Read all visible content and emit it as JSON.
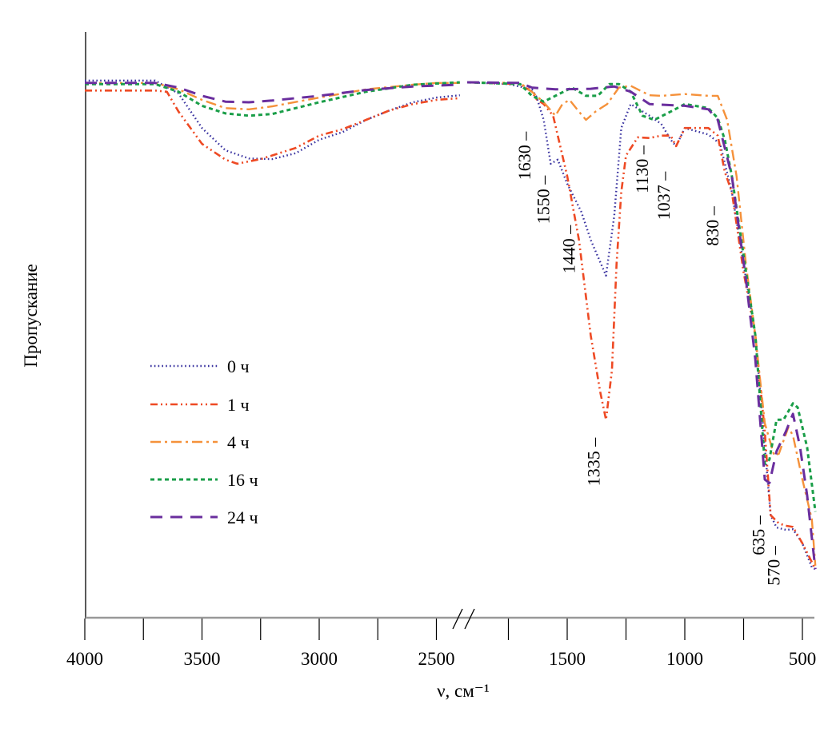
{
  "chart_data": {
    "type": "line",
    "title": "",
    "xlabel": "ν, см⁻¹",
    "ylabel": "Пропускание",
    "x_axis": {
      "reversed": true,
      "broken": true,
      "segments": [
        [
          4000,
          2390
        ],
        [
          1925,
          445
        ]
      ],
      "ticks": [
        {
          "value": 4000,
          "label": "4000",
          "segment": 0
        },
        {
          "value": 3750,
          "label": "",
          "segment": 0
        },
        {
          "value": 3500,
          "label": "3500",
          "segment": 0
        },
        {
          "value": 3250,
          "label": "",
          "segment": 0
        },
        {
          "value": 3000,
          "label": "3000",
          "segment": 0
        },
        {
          "value": 2750,
          "label": "",
          "segment": 0
        },
        {
          "value": 2500,
          "label": "2500",
          "segment": 0
        },
        {
          "value": 1750,
          "label": "",
          "segment": 1
        },
        {
          "value": 1500,
          "label": "1500",
          "segment": 1
        },
        {
          "value": 1250,
          "label": "",
          "segment": 1
        },
        {
          "value": 1000,
          "label": "1000",
          "segment": 1
        },
        {
          "value": 750,
          "label": "",
          "segment": 1
        },
        {
          "value": 500,
          "label": "500",
          "segment": 1
        }
      ]
    },
    "y_axis": {
      "units": "arbitrary transmittance",
      "ylim": [
        0,
        100
      ],
      "ticks_shown": false
    },
    "grid": false,
    "legend_position": "center-left",
    "series": [
      {
        "name": "0 ч",
        "color": "#3a33a0",
        "points": [
          [
            4000,
            91.7
          ],
          [
            3700,
            91.7
          ],
          [
            3600,
            89.5
          ],
          [
            3500,
            83.6
          ],
          [
            3400,
            79.8
          ],
          [
            3300,
            78.4
          ],
          [
            3200,
            78.3
          ],
          [
            3100,
            79.3
          ],
          [
            3000,
            81.6
          ],
          [
            2900,
            82.9
          ],
          [
            2800,
            85.0
          ],
          [
            2700,
            86.6
          ],
          [
            2600,
            88.0
          ],
          [
            2500,
            88.8
          ],
          [
            2400,
            89.2
          ],
          [
            1925,
            91.4
          ],
          [
            1750,
            91.1
          ],
          [
            1650,
            90.2
          ],
          [
            1630,
            88.9
          ],
          [
            1600,
            85.0
          ],
          [
            1570,
            77.5
          ],
          [
            1540,
            78.2
          ],
          [
            1500,
            74.1
          ],
          [
            1440,
            69.3
          ],
          [
            1400,
            64.5
          ],
          [
            1335,
            58.4
          ],
          [
            1300,
            68.6
          ],
          [
            1270,
            83.6
          ],
          [
            1230,
            87.7
          ],
          [
            1150,
            85.7
          ],
          [
            1100,
            84.3
          ],
          [
            1060,
            81.6
          ],
          [
            1037,
            80.5
          ],
          [
            1000,
            83.6
          ],
          [
            900,
            82.5
          ],
          [
            850,
            80.9
          ],
          [
            800,
            72.7
          ],
          [
            750,
            60.4
          ],
          [
            700,
            48.2
          ],
          [
            660,
            29.1
          ],
          [
            635,
            17.5
          ],
          [
            610,
            15.4
          ],
          [
            570,
            15.0
          ],
          [
            540,
            15.1
          ],
          [
            500,
            12.7
          ],
          [
            460,
            8.6
          ],
          [
            445,
            8.3
          ]
        ]
      },
      {
        "name": "1 ч",
        "color": "#ee4a24",
        "points": [
          [
            4000,
            90.0
          ],
          [
            3700,
            90.0
          ],
          [
            3650,
            89.8
          ],
          [
            3600,
            86.4
          ],
          [
            3500,
            80.9
          ],
          [
            3400,
            78.2
          ],
          [
            3350,
            77.5
          ],
          [
            3250,
            78.3
          ],
          [
            3100,
            80.2
          ],
          [
            3000,
            82.3
          ],
          [
            2900,
            83.4
          ],
          [
            2800,
            85.0
          ],
          [
            2700,
            86.6
          ],
          [
            2600,
            87.7
          ],
          [
            2500,
            88.4
          ],
          [
            2400,
            88.7
          ],
          [
            1925,
            91.4
          ],
          [
            1700,
            91.1
          ],
          [
            1650,
            89.8
          ],
          [
            1630,
            88.5
          ],
          [
            1600,
            87.7
          ],
          [
            1560,
            85.7
          ],
          [
            1500,
            75.4
          ],
          [
            1450,
            64.5
          ],
          [
            1400,
            48.2
          ],
          [
            1360,
            38.6
          ],
          [
            1335,
            33.8
          ],
          [
            1310,
            42.2
          ],
          [
            1290,
            60.4
          ],
          [
            1270,
            72.7
          ],
          [
            1250,
            78.9
          ],
          [
            1200,
            82.0
          ],
          [
            1150,
            81.9
          ],
          [
            1100,
            82.3
          ],
          [
            1060,
            82.3
          ],
          [
            1037,
            80.5
          ],
          [
            1000,
            83.6
          ],
          [
            900,
            83.6
          ],
          [
            860,
            82.3
          ],
          [
            840,
            78.2
          ],
          [
            830,
            76.1
          ],
          [
            800,
            72.7
          ],
          [
            750,
            59.0
          ],
          [
            700,
            48.2
          ],
          [
            660,
            31.8
          ],
          [
            635,
            17.5
          ],
          [
            600,
            16.1
          ],
          [
            570,
            15.7
          ],
          [
            540,
            15.5
          ],
          [
            500,
            12.7
          ],
          [
            445,
            8.3
          ]
        ]
      },
      {
        "name": "4 ч",
        "color": "#f5913a",
        "points": [
          [
            4000,
            91.3
          ],
          [
            3700,
            91.3
          ],
          [
            3600,
            90.2
          ],
          [
            3500,
            88.4
          ],
          [
            3400,
            87.0
          ],
          [
            3300,
            86.8
          ],
          [
            3200,
            87.3
          ],
          [
            3000,
            88.8
          ],
          [
            2800,
            90.2
          ],
          [
            2600,
            91.0
          ],
          [
            2500,
            91.3
          ],
          [
            2400,
            91.3
          ],
          [
            1925,
            91.4
          ],
          [
            1700,
            91.3
          ],
          [
            1650,
            89.8
          ],
          [
            1600,
            88.0
          ],
          [
            1550,
            85.7
          ],
          [
            1520,
            87.7
          ],
          [
            1490,
            88.4
          ],
          [
            1450,
            86.4
          ],
          [
            1420,
            85.0
          ],
          [
            1380,
            86.4
          ],
          [
            1330,
            87.7
          ],
          [
            1280,
            90.5
          ],
          [
            1230,
            90.8
          ],
          [
            1150,
            89.2
          ],
          [
            1100,
            89.1
          ],
          [
            1000,
            89.4
          ],
          [
            900,
            89.1
          ],
          [
            860,
            89.1
          ],
          [
            820,
            85.0
          ],
          [
            780,
            75.4
          ],
          [
            740,
            60.4
          ],
          [
            700,
            48.2
          ],
          [
            660,
            33.2
          ],
          [
            620,
            27.7
          ],
          [
            600,
            28.0
          ],
          [
            560,
            32.5
          ],
          [
            540,
            31.1
          ],
          [
            500,
            23.6
          ],
          [
            460,
            16.8
          ],
          [
            445,
            8.9
          ]
        ]
      },
      {
        "name": "16 ч",
        "color": "#1a9e48",
        "points": [
          [
            4000,
            91.1
          ],
          [
            3700,
            91.1
          ],
          [
            3600,
            89.8
          ],
          [
            3500,
            87.4
          ],
          [
            3400,
            86.1
          ],
          [
            3300,
            85.7
          ],
          [
            3200,
            86.0
          ],
          [
            3000,
            88.0
          ],
          [
            2800,
            89.8
          ],
          [
            2600,
            91.0
          ],
          [
            2400,
            91.4
          ],
          [
            1925,
            91.4
          ],
          [
            1700,
            91.1
          ],
          [
            1650,
            89.1
          ],
          [
            1600,
            88.1
          ],
          [
            1550,
            89.1
          ],
          [
            1480,
            90.5
          ],
          [
            1420,
            89.1
          ],
          [
            1370,
            89.1
          ],
          [
            1320,
            91.1
          ],
          [
            1280,
            91.1
          ],
          [
            1230,
            89.8
          ],
          [
            1180,
            85.7
          ],
          [
            1130,
            85.0
          ],
          [
            1050,
            86.6
          ],
          [
            1000,
            87.7
          ],
          [
            900,
            87.0
          ],
          [
            860,
            85.3
          ],
          [
            830,
            81.6
          ],
          [
            800,
            75.4
          ],
          [
            750,
            61.8
          ],
          [
            700,
            48.2
          ],
          [
            680,
            37.3
          ],
          [
            660,
            26.3
          ],
          [
            640,
            27.0
          ],
          [
            610,
            33.8
          ],
          [
            580,
            33.8
          ],
          [
            540,
            36.6
          ],
          [
            520,
            35.9
          ],
          [
            480,
            29.1
          ],
          [
            445,
            18.1
          ]
        ]
      },
      {
        "name": "24 ч",
        "color": "#6a2e9e",
        "points": [
          [
            4000,
            91.3
          ],
          [
            3700,
            91.3
          ],
          [
            3600,
            90.5
          ],
          [
            3500,
            89.1
          ],
          [
            3400,
            88.1
          ],
          [
            3300,
            88.0
          ],
          [
            3200,
            88.3
          ],
          [
            3000,
            89.1
          ],
          [
            2800,
            90.1
          ],
          [
            2600,
            90.7
          ],
          [
            2400,
            91.0
          ],
          [
            1925,
            91.4
          ],
          [
            1700,
            91.3
          ],
          [
            1650,
            90.5
          ],
          [
            1550,
            90.2
          ],
          [
            1400,
            90.3
          ],
          [
            1300,
            90.7
          ],
          [
            1230,
            89.8
          ],
          [
            1150,
            87.7
          ],
          [
            1000,
            87.4
          ],
          [
            900,
            86.8
          ],
          [
            860,
            85.0
          ],
          [
            800,
            75.4
          ],
          [
            740,
            57.7
          ],
          [
            700,
            44.1
          ],
          [
            660,
            23.6
          ],
          [
            640,
            23.0
          ],
          [
            610,
            28.4
          ],
          [
            570,
            31.8
          ],
          [
            540,
            34.8
          ],
          [
            510,
            29.1
          ],
          [
            480,
            20.9
          ],
          [
            445,
            8.3
          ]
        ]
      }
    ],
    "annotations": [
      {
        "value": 1630,
        "label": "1630 –"
      },
      {
        "value": 1550,
        "label": "1550 –"
      },
      {
        "value": 1440,
        "label": "1440 –"
      },
      {
        "value": 1335,
        "label": "1335 –"
      },
      {
        "value": 1130,
        "label": "1130 –"
      },
      {
        "value": 1037,
        "label": "1037 –"
      },
      {
        "value": 830,
        "label": "830 –"
      },
      {
        "value": 635,
        "label": "635 –"
      },
      {
        "value": 570,
        "label": "570 –"
      }
    ]
  }
}
